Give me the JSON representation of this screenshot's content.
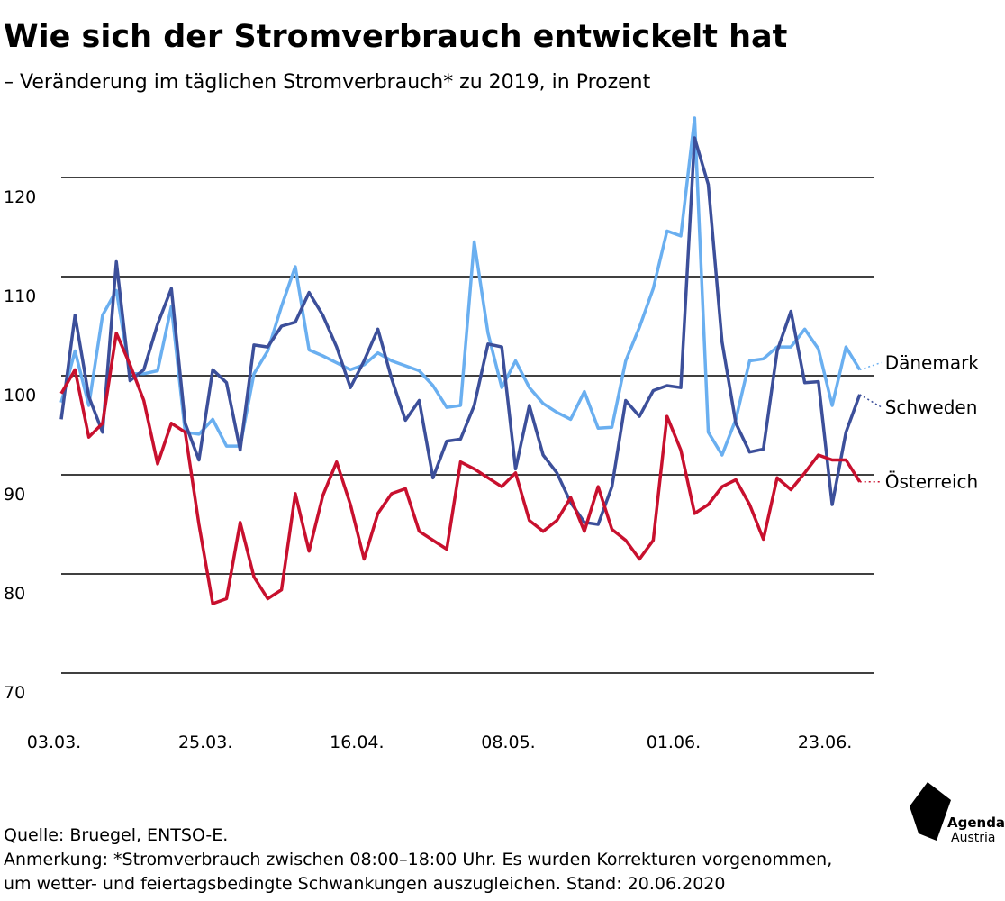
{
  "chart_data": {
    "type": "line",
    "title": "Wie sich der Stromverbrauch entwickelt hat",
    "subtitle": "– Veränderung im täglichen Stromverbrauch* zu 2019, in Prozent",
    "source": "Quelle: Bruegel, ENTSO-E.",
    "note": [
      "Anmerkung: *Stromverbrauch zwischen 08:00–18:00 Uhr. Es wurden Korrekturen vorgenommen,",
      "um wetter- und feiertagsbedingte Schwankungen auszugleichen. Stand: 20.06.2020"
    ],
    "logo": [
      "Agenda",
      "Austria"
    ],
    "x": [
      0,
      2,
      4,
      6,
      8,
      10,
      12,
      14,
      16,
      18,
      20,
      22,
      24,
      26,
      28,
      30,
      32,
      34,
      36,
      38,
      40,
      42,
      44,
      46,
      48,
      50,
      52,
      54,
      56,
      58,
      60,
      62,
      64,
      66,
      68,
      70,
      72,
      74,
      76,
      78,
      80,
      82,
      84,
      86,
      88,
      90,
      92,
      94,
      96,
      98,
      100,
      102,
      104,
      106,
      108,
      110,
      112,
      114,
      116
    ],
    "xlim": [
      0,
      118
    ],
    "xticks": [
      {
        "value": 0,
        "label": "03.03."
      },
      {
        "value": 22,
        "label": "25.03."
      },
      {
        "value": 44,
        "label": "16.04."
      },
      {
        "value": 66,
        "label": "08.05."
      },
      {
        "value": 90,
        "label": "01.06."
      },
      {
        "value": 112,
        "label": "23.06."
      }
    ],
    "ylim": [
      70,
      128
    ],
    "yticks": [
      70,
      80,
      90,
      100,
      110,
      120
    ],
    "grid": true,
    "series": [
      {
        "name": "Dänemark",
        "color": "#6aaff0",
        "values": [
          97.3,
          102.5,
          97,
          106.1,
          108.6,
          100.2,
          100.2,
          100.5,
          107,
          94.3,
          94.1,
          95.6,
          92.9,
          92.9,
          100.2,
          102.5,
          107,
          111,
          102.6,
          102,
          101.3,
          100.6,
          101.1,
          102.3,
          101.5,
          101,
          100.5,
          99,
          96.8,
          97,
          113.5,
          104.3,
          98.8,
          101.5,
          98.8,
          97.2,
          96.3,
          95.6,
          98.4,
          94.7,
          94.8,
          101.5,
          104.9,
          108.8,
          114.6,
          114.1,
          126,
          94.3,
          92,
          95.6,
          101.5,
          101.7,
          102.9,
          102.9,
          104.7,
          102.7,
          97,
          102.9,
          100.6
        ]
      },
      {
        "name": "Schweden",
        "color": "#3c4f9a",
        "values": [
          95.6,
          106.1,
          97.9,
          94.3,
          111.5,
          99.5,
          100.6,
          105.2,
          108.8,
          95.2,
          91.5,
          100.6,
          99.3,
          92.5,
          103.1,
          102.9,
          105,
          105.4,
          108.4,
          106.1,
          102.9,
          98.8,
          101.5,
          104.7,
          99.7,
          95.5,
          97.5,
          89.7,
          93.4,
          93.6,
          97,
          103.2,
          102.9,
          90.6,
          97,
          92,
          90.2,
          87.2,
          85.2,
          85,
          88.8,
          97.5,
          95.9,
          98.5,
          99,
          98.8,
          124,
          119.3,
          103.4,
          95.2,
          92.3,
          92.6,
          102.5,
          106.5,
          99.3,
          99.4,
          87,
          94.3,
          98.1
        ]
      },
      {
        "name": "Österreich",
        "color": "#c8102e",
        "values": [
          98.2,
          100.6,
          93.8,
          95.2,
          104.3,
          101.1,
          97.5,
          91.1,
          95.2,
          94.3,
          85,
          77,
          77.5,
          85.2,
          79.7,
          77.5,
          78.4,
          88.1,
          82.3,
          87.9,
          91.3,
          87,
          81.5,
          86.1,
          88.1,
          88.6,
          84.3,
          83.4,
          82.5,
          91.3,
          90.6,
          89.7,
          88.8,
          90.2,
          85.4,
          84.3,
          85.4,
          87.7,
          84.3,
          88.8,
          84.5,
          83.4,
          81.5,
          83.4,
          95.9,
          92.5,
          86.1,
          87,
          88.8,
          89.5,
          87,
          83.5,
          89.7,
          88.5,
          90.2,
          92,
          91.5,
          91.5,
          89.3
        ]
      }
    ]
  }
}
